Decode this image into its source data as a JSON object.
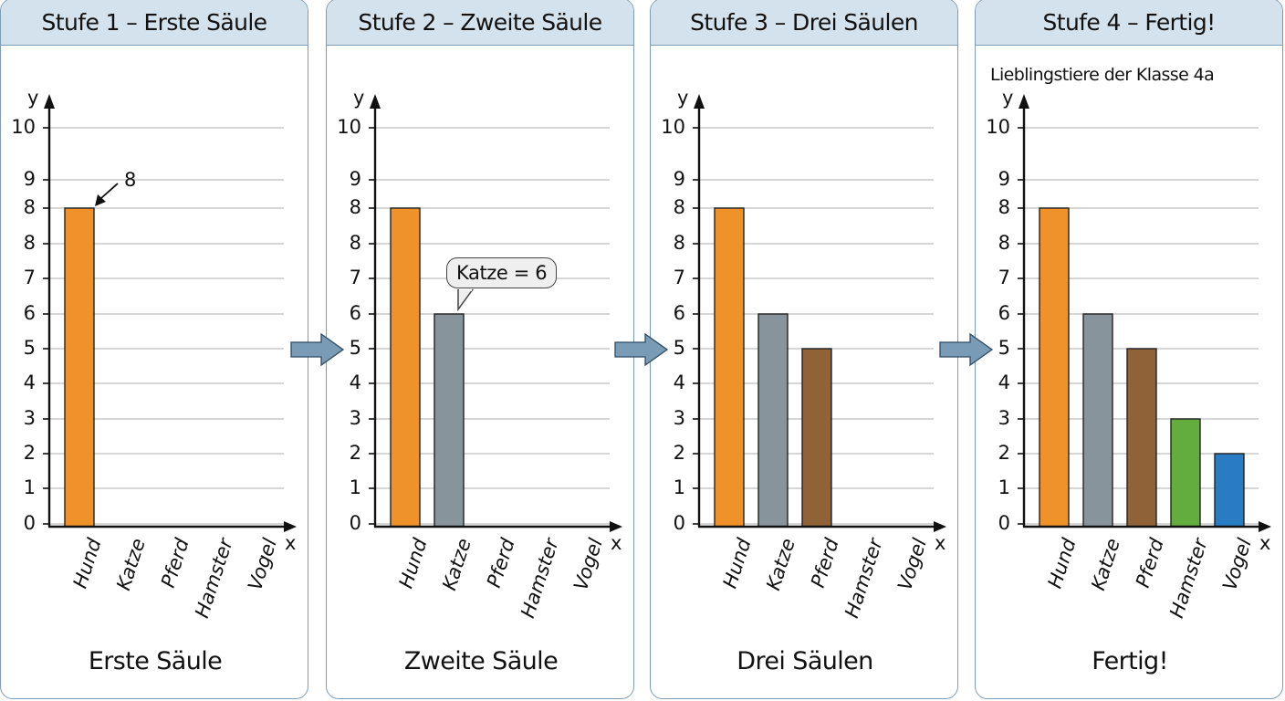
{
  "panels": [
    {
      "title": "Stufe 1 – Erste Säule",
      "subtitle": "",
      "caption": "Erste Säule",
      "bars": [
        8,
        0,
        0,
        0,
        0
      ],
      "annotation": "8"
    },
    {
      "title": "Stufe 2 – Zweite Säule",
      "subtitle": "",
      "caption": "Zweite Säule",
      "bars": [
        8,
        6,
        0,
        0,
        0
      ],
      "callout": "Katze = 6"
    },
    {
      "title": "Stufe 3 – Drei Säulen",
      "subtitle": "",
      "caption": "Drei Säulen",
      "bars": [
        8,
        6,
        5,
        0,
        0
      ]
    },
    {
      "title": "Stufe 4 – Fertig!",
      "subtitle": "Lieblingstiere der Klasse 4a",
      "caption": "Fertig!",
      "bars": [
        8,
        6,
        5,
        3,
        2
      ]
    }
  ],
  "axes": {
    "x_label": "x",
    "y_label": "y",
    "y_tick_labels": [
      "10",
      "9",
      "8",
      "8",
      "7",
      "6",
      "5",
      "4",
      "3",
      "2",
      "1",
      "0"
    ]
  },
  "categories": [
    "Hund",
    "Katze",
    "Pferd",
    "Hamster",
    "Vogel"
  ],
  "colors": {
    "Hund": "#f0922a",
    "Katze": "#87949c",
    "Pferd": "#8f6238",
    "Hamster": "#63ad3e",
    "Vogel": "#2a7cc2",
    "header_bg": "#d3e2ed",
    "border": "#7f9cb6",
    "connector_arrow": "#7a9bb5",
    "gridline": "#c8c8c8"
  },
  "chart_data": {
    "type": "bar",
    "title": "Lieblingstiere der Klasse 4a",
    "categories": [
      "Hund",
      "Katze",
      "Pferd",
      "Hamster",
      "Vogel"
    ],
    "values": [
      8,
      6,
      5,
      3,
      2
    ],
    "xlabel": "x",
    "ylabel": "y",
    "ylim": [
      0,
      10
    ],
    "y_tick_labels": [
      "0",
      "1",
      "2",
      "3",
      "4",
      "5",
      "6",
      "7",
      "8",
      "8",
      "9",
      "10"
    ],
    "grid": true,
    "stages": [
      {
        "title": "Stufe 1 – Erste Säule",
        "caption": "Erste Säule",
        "values": [
          8,
          null,
          null,
          null,
          null
        ],
        "annotation": "8"
      },
      {
        "title": "Stufe 2 – Zweite Säule",
        "caption": "Zweite Säule",
        "values": [
          8,
          6,
          null,
          null,
          null
        ],
        "annotation": "Katze = 6"
      },
      {
        "title": "Stufe 3 – Drei Säulen",
        "caption": "Drei Säulen",
        "values": [
          8,
          6,
          5,
          null,
          null
        ]
      },
      {
        "title": "Stufe 4 – Fertig!",
        "caption": "Fertig!",
        "subtitle": "Lieblingstiere der Klasse 4a",
        "values": [
          8,
          6,
          5,
          3,
          2
        ]
      }
    ]
  }
}
